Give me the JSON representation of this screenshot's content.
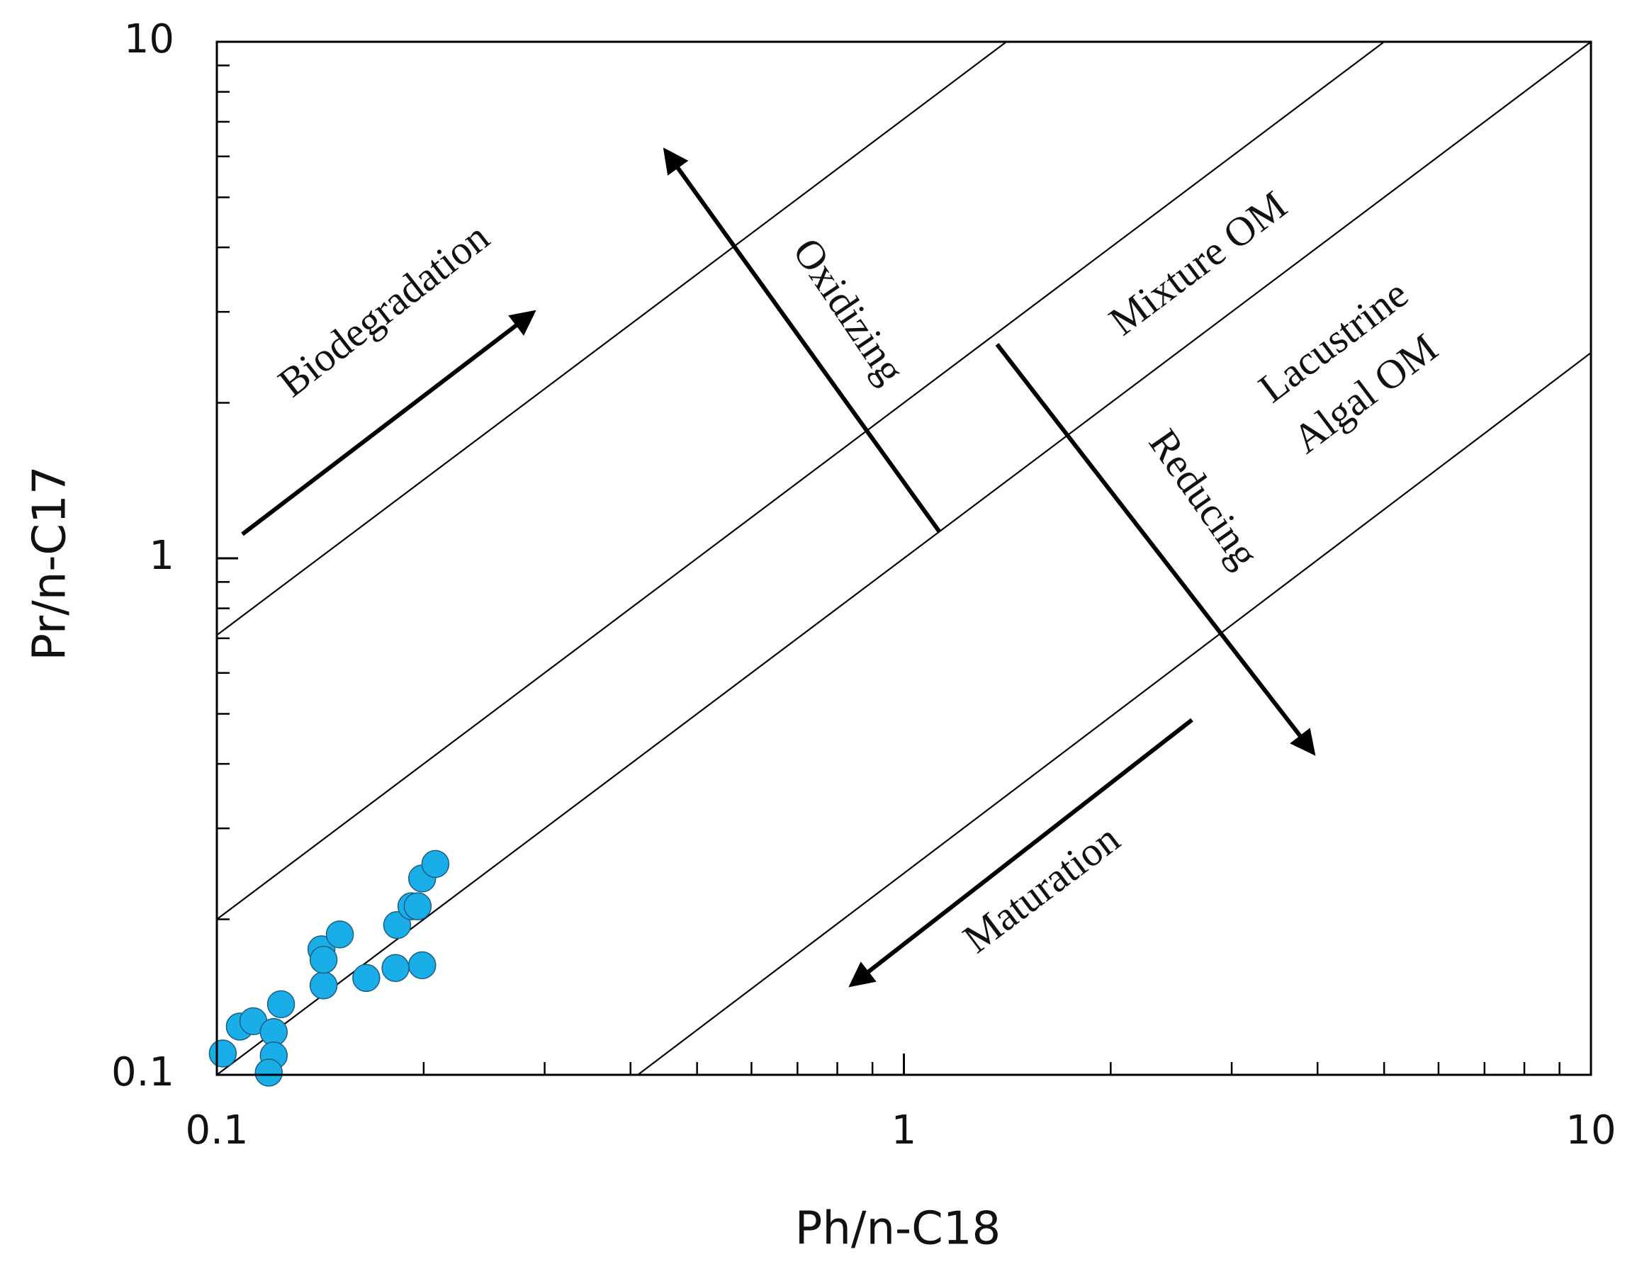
{
  "chart_data": {
    "type": "scatter",
    "x_label": "Ph/n-C18",
    "y_label": "Pr/n-C17",
    "xlog": true,
    "ylog": true,
    "xlim": [
      0.1,
      10
    ],
    "ylim": [
      0.1,
      10
    ],
    "xticks": [
      0.1,
      1,
      10
    ],
    "yticks": [
      0.1,
      1,
      10
    ],
    "color": "#1aaee8",
    "x": [
      0.102,
      0.108,
      0.113,
      0.121,
      0.121,
      0.119,
      0.124,
      0.143,
      0.142,
      0.143,
      0.151,
      0.165,
      0.182,
      0.183,
      0.192,
      0.196,
      0.199,
      0.199,
      0.208
    ],
    "values": [
      0.11,
      0.124,
      0.127,
      0.121,
      0.109,
      0.101,
      0.137,
      0.149,
      0.175,
      0.167,
      0.187,
      0.154,
      0.161,
      0.195,
      0.212,
      0.212,
      0.163,
      0.24,
      0.256
    ],
    "reference_lines": [
      {
        "x": [
          0.1,
          1.41
        ],
        "y": [
          0.71,
          10
        ]
      },
      {
        "x": [
          0.1,
          5
        ],
        "y": [
          0.2,
          10
        ]
      },
      {
        "x": [
          0.1,
          10
        ],
        "y": [
          0.1,
          10
        ]
      },
      {
        "x": [
          0.41,
          10
        ],
        "y": [
          0.1,
          2.5
        ]
      }
    ],
    "annotations": [
      "Biodegradation",
      "Oxidizing",
      "Mixture OM",
      "Lacustrine",
      "Algal OM",
      "Reducing",
      "Maturation"
    ]
  }
}
